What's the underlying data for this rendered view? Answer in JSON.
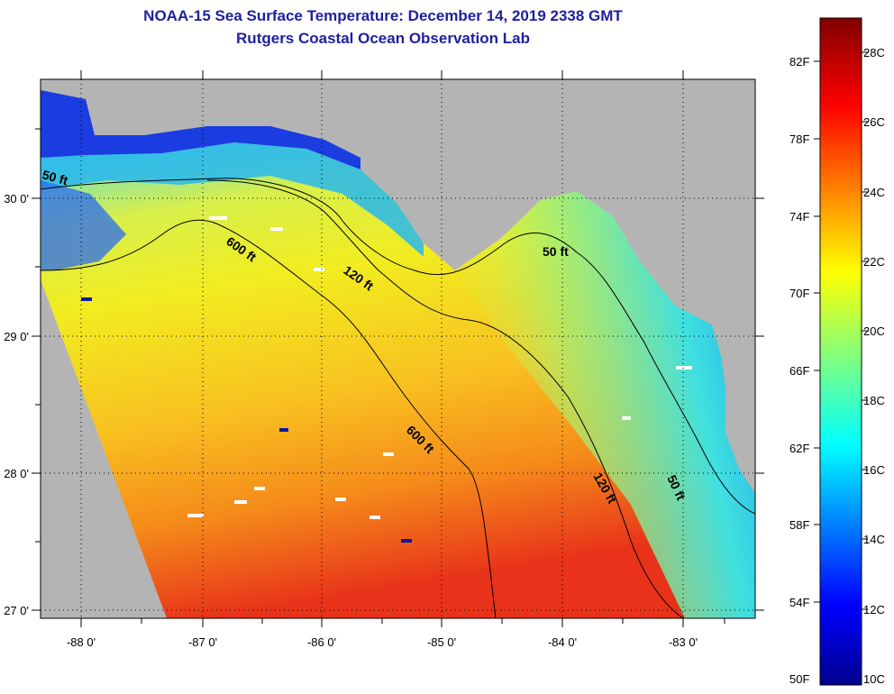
{
  "header": {
    "title": "NOAA-15 Sea Surface Temperature:  December 14, 2019 2338 GMT",
    "subtitle": "Rutgers Coastal Ocean Observation Lab"
  },
  "map": {
    "lon_ticks": [
      "-88 0'",
      "-87 0'",
      "-86 0'",
      "-85 0'",
      "-84 0'",
      "-83 0'"
    ],
    "lat_ticks": [
      "30 0'",
      "29 0'",
      "28 0'",
      "27 0'"
    ],
    "contours": [
      {
        "label": "50 ft"
      },
      {
        "label": "600 ft"
      },
      {
        "label": "120 ft"
      },
      {
        "label": "50 ft"
      },
      {
        "label": "600 ft"
      },
      {
        "label": "120 ft"
      },
      {
        "label": "50 ft"
      }
    ],
    "colors": {
      "land": "#b4b4b4",
      "background": "#ffffff",
      "title": "#1f1fa0"
    }
  },
  "colorbar": {
    "fahrenheit": [
      "82F",
      "78F",
      "74F",
      "70F",
      "66F",
      "62F",
      "58F",
      "54F",
      "50F"
    ],
    "celsius": [
      "28C",
      "26C",
      "24C",
      "22C",
      "20C",
      "18C",
      "16C",
      "14C",
      "12C",
      "10C"
    ]
  }
}
